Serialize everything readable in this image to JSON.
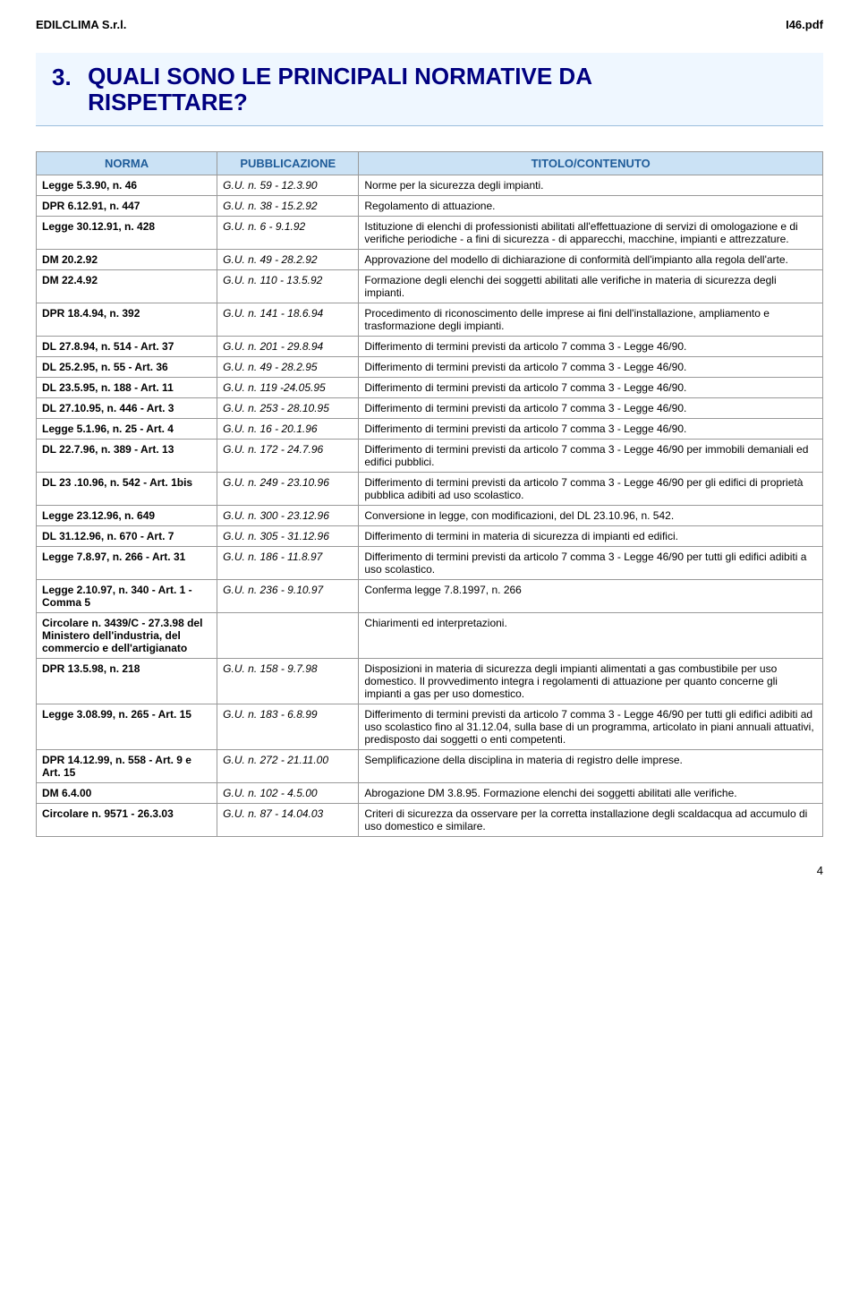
{
  "header": {
    "company": "EDILCLIMA S.r.l.",
    "doc_ref": "I46.pdf"
  },
  "section": {
    "num": "3.",
    "title": "QUALI SONO LE PRINCIPALI NORMATIVE DA RISPETTARE?"
  },
  "columns": {
    "c1": "NORMA",
    "c2": "PUBBLICAZIONE",
    "c3": "TITOLO/CONTENUTO"
  },
  "rows": [
    {
      "norma": "Legge 5.3.90, n. 46",
      "pub": "G.U. n. 59 - 12.3.90",
      "tit": "Norme per la sicurezza degli impianti."
    },
    {
      "norma": "DPR 6.12.91, n. 447",
      "pub": "G.U. n. 38 - 15.2.92",
      "tit": "Regolamento di attuazione."
    },
    {
      "norma": "Legge 30.12.91, n. 428",
      "pub": "G.U. n. 6 - 9.1.92",
      "tit": "Istituzione di elenchi di professionisti abilitati all'effettuazione di servizi di omologazione e di verifiche periodiche - a fini di sicurezza - di apparecchi, macchine, impianti e attrezzature."
    },
    {
      "norma": "DM 20.2.92",
      "pub": "G.U. n. 49 - 28.2.92",
      "tit": "Approvazione del modello di dichiarazione di conformità dell'impianto alla regola dell'arte."
    },
    {
      "norma": "DM 22.4.92",
      "pub": "G.U. n. 110 - 13.5.92",
      "tit": "Formazione degli elenchi dei soggetti abilitati alle verifiche in materia di sicurezza degli impianti."
    },
    {
      "norma": "DPR 18.4.94, n. 392",
      "pub": "G.U. n. 141 - 18.6.94",
      "tit": "Procedimento di riconoscimento delle imprese ai fini dell'installazione, ampliamento e trasformazione degli impianti."
    },
    {
      "norma": "DL 27.8.94, n. 514 - Art. 37",
      "pub": "G.U. n. 201 - 29.8.94",
      "tit": "Differimento di termini previsti da articolo 7 comma 3 - Legge 46/90."
    },
    {
      "norma": "DL 25.2.95, n. 55 - Art. 36",
      "pub": "G.U. n. 49 - 28.2.95",
      "tit": "Differimento di termini previsti da articolo 7 comma 3 - Legge 46/90."
    },
    {
      "norma": "DL 23.5.95, n. 188 - Art. 11",
      "pub": "G.U. n. 119 -24.05.95",
      "tit": "Differimento di termini previsti da articolo 7 comma 3 - Legge 46/90."
    },
    {
      "norma": "DL 27.10.95, n. 446 - Art. 3",
      "pub": "G.U. n. 253 - 28.10.95",
      "tit": "Differimento di termini previsti da articolo 7 comma 3 - Legge 46/90."
    },
    {
      "norma": "Legge 5.1.96, n. 25 - Art. 4",
      "pub": "G.U. n. 16 - 20.1.96",
      "tit": "Differimento di termini previsti da articolo 7 comma 3 - Legge 46/90."
    },
    {
      "norma": "DL 22.7.96, n. 389 - Art. 13",
      "pub": "G.U. n. 172 - 24.7.96",
      "tit": "Differimento di termini previsti da articolo 7 comma 3 - Legge 46/90 per immobili demaniali ed edifici pubblici."
    },
    {
      "norma": "DL 23 .10.96, n. 542 - Art. 1bis",
      "pub": "G.U. n. 249 - 23.10.96",
      "tit": "Differimento di termini previsti da articolo 7 comma 3 - Legge 46/90 per gli edifici di proprietà pubblica adibiti ad uso scolastico."
    },
    {
      "norma": "Legge 23.12.96, n. 649",
      "pub": "G.U. n. 300 - 23.12.96",
      "tit": "Conversione in legge, con modificazioni, del DL 23.10.96, n. 542."
    },
    {
      "norma": "DL 31.12.96, n. 670 - Art. 7",
      "pub": "G.U. n. 305 - 31.12.96",
      "tit": "Differimento di termini in materia di sicurezza di impianti ed edifici."
    },
    {
      "norma": "Legge 7.8.97, n. 266 - Art. 31",
      "pub": "G.U. n. 186 - 11.8.97",
      "tit": "Differimento di termini previsti da articolo 7 comma 3 - Legge 46/90 per tutti gli edifici adibiti a uso scolastico."
    },
    {
      "norma": "Legge 2.10.97, n. 340 - Art. 1 - Comma 5",
      "pub": "G.U. n. 236 - 9.10.97",
      "tit": "Conferma legge 7.8.1997, n. 266"
    },
    {
      "norma": "Circolare n. 3439/C - 27.3.98 del Ministero dell'industria, del commercio e dell'artigianato",
      "pub": "",
      "tit": "Chiarimenti ed interpretazioni."
    },
    {
      "norma": "DPR 13.5.98, n. 218",
      "pub": "G.U. n. 158 - 9.7.98",
      "tit": "Disposizioni in materia di sicurezza degli impianti alimentati a gas combustibile per uso domestico.\nIl provvedimento integra i regolamenti di attuazione per quanto concerne gli impianti a gas per uso domestico."
    },
    {
      "norma": "Legge 3.08.99, n. 265 - Art. 15",
      "pub": "G.U. n. 183 - 6.8.99",
      "tit": "Differimento di termini previsti da articolo 7 comma 3 - Legge 46/90 per tutti gli edifici adibiti ad uso scolastico fino al 31.12.04, sulla base di un programma, articolato in piani annuali attuativi, predisposto dai soggetti o enti competenti."
    },
    {
      "norma": "DPR 14.12.99, n. 558 - Art. 9 e Art. 15",
      "pub": "G.U. n. 272 - 21.11.00",
      "tit": "Semplificazione della disciplina in materia di registro delle imprese."
    },
    {
      "norma": "DM 6.4.00",
      "pub": "G.U. n. 102 - 4.5.00",
      "tit": "Abrogazione DM 3.8.95. Formazione elenchi dei soggetti abilitati alle verifiche."
    },
    {
      "norma": "Circolare n. 9571 - 26.3.03",
      "pub": "G.U. n. 87 - 14.04.03",
      "tit": "Criteri di sicurezza da osservare per la corretta installazione degli scaldacqua ad accumulo di uso domestico e similare."
    }
  ],
  "page_num": "4",
  "style": {
    "banner_bg": "#eff7ff",
    "banner_text": "#000080",
    "th_bg": "#cbe2f5",
    "th_text": "#1f5c99",
    "border": "#999999"
  }
}
